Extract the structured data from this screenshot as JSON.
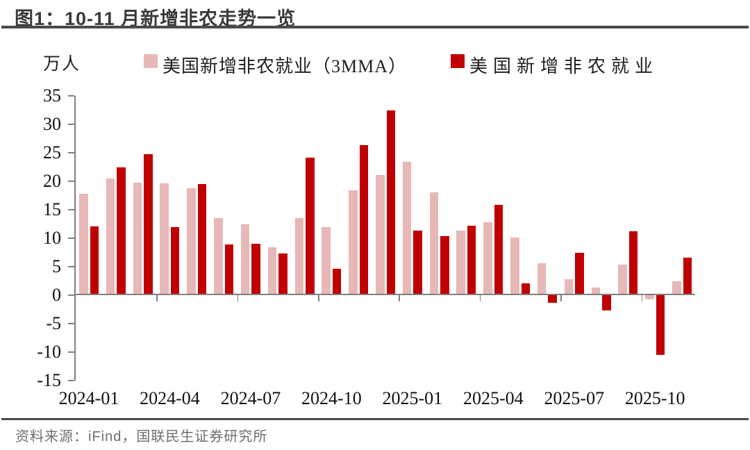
{
  "header": {
    "title": "图1：10-11 月新增非农走势一览"
  },
  "footer": {
    "source": "资料来源：iFind，国联民生证券研究所"
  },
  "chart_data": {
    "type": "bar",
    "title": "图1：10-11 月新增非农走势一览",
    "ylabel": "万人",
    "xlabel": "",
    "ylim": [
      -15,
      35
    ],
    "ytick_step": 5,
    "yticks": [
      35,
      30,
      25,
      20,
      15,
      10,
      5,
      0,
      -5,
      -10,
      -15
    ],
    "grid": false,
    "legend_position": "top",
    "categories": [
      "2024-01",
      "2024-02",
      "2024-03",
      "2024-04",
      "2024-05",
      "2024-06",
      "2024-07",
      "2024-08",
      "2024-09",
      "2024-10",
      "2024-11",
      "2024-12",
      "2025-01",
      "2025-02",
      "2025-03",
      "2025-04",
      "2025-05",
      "2025-06",
      "2025-07",
      "2025-08",
      "2025-09",
      "2025-10",
      "2025-11"
    ],
    "xtick_labels": [
      "2024-01",
      "2024-04",
      "2024-07",
      "2024-10",
      "2025-01",
      "2025-04",
      "2025-07",
      "2025-10"
    ],
    "series": [
      {
        "name": "美国新增非农就业（3MMA）",
        "color": "#E6B8B7",
        "values": [
          17.6,
          20.3,
          19.6,
          19.5,
          18.6,
          13.3,
          12.3,
          8.2,
          13.3,
          11.8,
          18.2,
          20.9,
          23.2,
          17.9,
          11.1,
          12.6,
          9.9,
          5.4,
          2.6,
          1.1,
          5.2,
          -0.7,
          2.3
        ]
      },
      {
        "name": "美国新增非农就业",
        "color": "#C00000",
        "values": [
          11.9,
          22.2,
          24.6,
          11.8,
          19.3,
          8.7,
          8.8,
          7.1,
          24.0,
          4.4,
          26.1,
          32.3,
          11.1,
          10.2,
          12.0,
          15.7,
          1.9,
          -1.3,
          7.2,
          -2.7,
          11.0,
          -10.5,
          6.4
        ]
      }
    ],
    "source": "资料来源：iFind，国联民生证券研究所"
  }
}
